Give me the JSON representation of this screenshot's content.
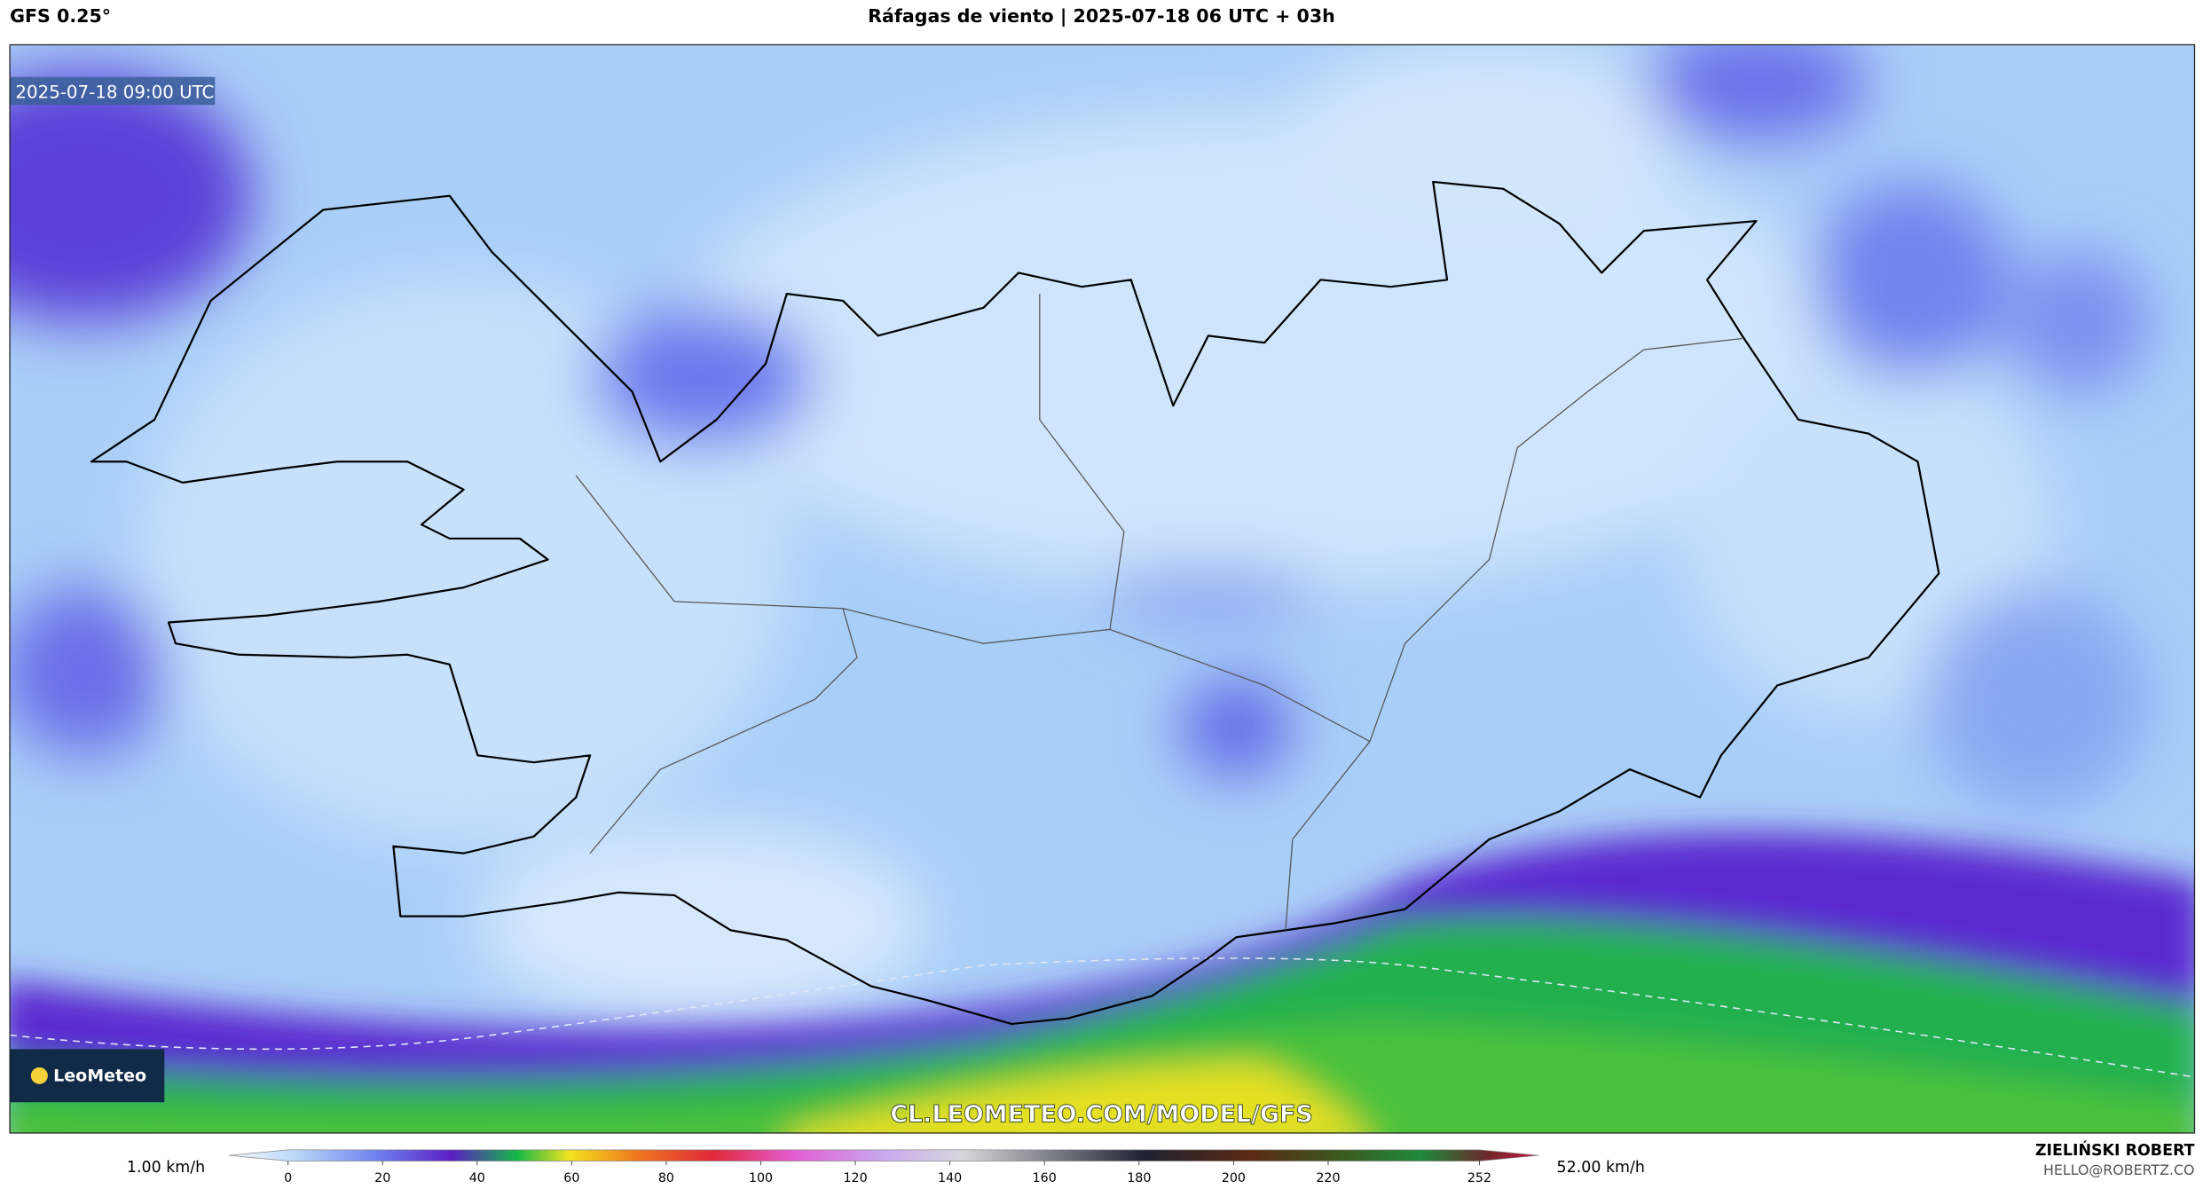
{
  "header": {
    "model": "GFS 0.25°",
    "title": "Ráfagas de viento | 2025-07-18 06 UTC + 03h",
    "author": "ZIELIŃSKI ROBERT",
    "email": "HELLO@ROBERTZ.CO"
  },
  "map": {
    "valid_time": "2025-07-18 09:00 UTC",
    "logo": "LeoMeteo",
    "watermark": "CL.LEOMETEO.COM/MODEL/GFS"
  },
  "colorbar": {
    "min_label": "1.00 km/h",
    "max_label": "52.00 km/h",
    "ticks": [
      0,
      20,
      40,
      60,
      80,
      100,
      120,
      140,
      160,
      180,
      200,
      220,
      252
    ]
  }
}
